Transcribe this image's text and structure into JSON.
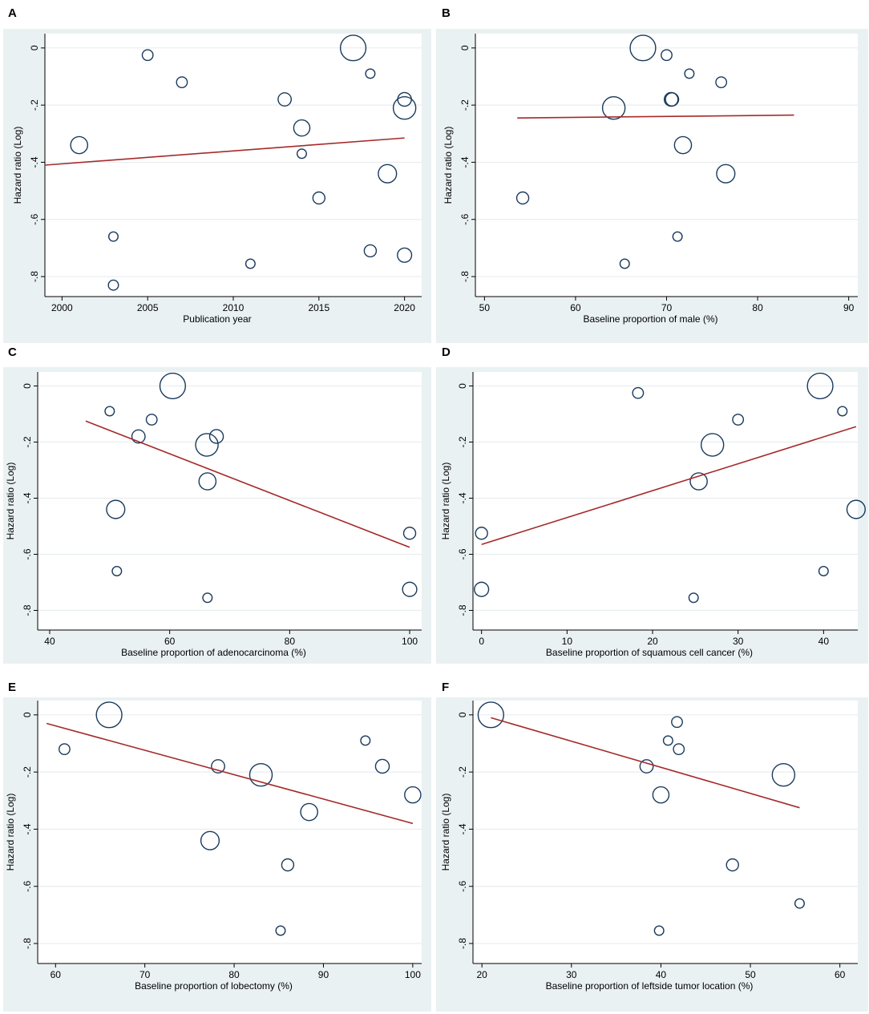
{
  "colors": {
    "panel_bg": "#eaf1f3",
    "plot_bg": "#ffffff",
    "gridline": "#e8eef0",
    "marker": "#1a3a5c",
    "fit_line": "#a52a2a",
    "axis": "#000000"
  },
  "chart_data": [
    {
      "panel": "A",
      "type": "scatter",
      "title": "",
      "xlabel": "Publication year",
      "ylabel": "Hazard ratio (Log)",
      "xlim": [
        1999,
        2021
      ],
      "ylim": [
        -0.87,
        0.05
      ],
      "xticks": [
        2000,
        2005,
        2010,
        2015,
        2020
      ],
      "xtick_labels": [
        "2000",
        "2005",
        "2010",
        "2015",
        "2020"
      ],
      "yticks": [
        0,
        -0.2,
        -0.4,
        -0.6,
        -0.8
      ],
      "ytick_labels": [
        "0",
        "-.2",
        "-.4",
        "-.6",
        "-.8"
      ],
      "points": [
        {
          "x": 2001,
          "y": -0.34,
          "weight": 2
        },
        {
          "x": 2003,
          "y": -0.66,
          "weight": 0.6
        },
        {
          "x": 2003,
          "y": -0.83,
          "weight": 0.7
        },
        {
          "x": 2005,
          "y": -0.025,
          "weight": 0.8
        },
        {
          "x": 2007,
          "y": -0.12,
          "weight": 0.8
        },
        {
          "x": 2011,
          "y": -0.755,
          "weight": 0.6
        },
        {
          "x": 2013,
          "y": -0.18,
          "weight": 1.2
        },
        {
          "x": 2014,
          "y": -0.28,
          "weight": 1.8
        },
        {
          "x": 2014,
          "y": -0.37,
          "weight": 0.6
        },
        {
          "x": 2015,
          "y": -0.525,
          "weight": 1.0
        },
        {
          "x": 2017,
          "y": 0.0,
          "weight": 4.5
        },
        {
          "x": 2018,
          "y": -0.09,
          "weight": 0.6
        },
        {
          "x": 2018,
          "y": -0.71,
          "weight": 1.0
        },
        {
          "x": 2019,
          "y": -0.44,
          "weight": 2.3
        },
        {
          "x": 2020,
          "y": -0.18,
          "weight": 1.3
        },
        {
          "x": 2020,
          "y": -0.21,
          "weight": 3.5
        },
        {
          "x": 2020,
          "y": -0.725,
          "weight": 1.4
        }
      ],
      "fit_line": {
        "x": [
          1999,
          2020
        ],
        "y": [
          -0.41,
          -0.315
        ]
      }
    },
    {
      "panel": "B",
      "type": "scatter",
      "title": "",
      "xlabel": "Baseline proportion of male (%)",
      "ylabel": "Hazard ratio (Log)",
      "xlim": [
        49,
        91
      ],
      "ylim": [
        -0.87,
        0.05
      ],
      "xticks": [
        50,
        60,
        70,
        80,
        90
      ],
      "xtick_labels": [
        "50",
        "60",
        "70",
        "80",
        "90"
      ],
      "yticks": [
        0,
        -0.2,
        -0.4,
        -0.6,
        -0.8
      ],
      "ytick_labels": [
        "0",
        "-.2",
        "-.4",
        "-.6",
        "-.8"
      ],
      "points": [
        {
          "x": 54.2,
          "y": -0.525,
          "weight": 1.0
        },
        {
          "x": 64.2,
          "y": -0.21,
          "weight": 3.5
        },
        {
          "x": 65.4,
          "y": -0.755,
          "weight": 0.6
        },
        {
          "x": 67.4,
          "y": 0.0,
          "weight": 4.5
        },
        {
          "x": 70.0,
          "y": -0.025,
          "weight": 0.8
        },
        {
          "x": 70.5,
          "y": -0.18,
          "weight": 1.3
        },
        {
          "x": 70.6,
          "y": -0.18,
          "weight": 1.2
        },
        {
          "x": 71.2,
          "y": -0.66,
          "weight": 0.6
        },
        {
          "x": 71.8,
          "y": -0.34,
          "weight": 2.0
        },
        {
          "x": 72.5,
          "y": -0.09,
          "weight": 0.6
        },
        {
          "x": 76.0,
          "y": -0.12,
          "weight": 0.8
        },
        {
          "x": 76.5,
          "y": -0.44,
          "weight": 2.3
        }
      ],
      "fit_line": {
        "x": [
          53.6,
          84.0
        ],
        "y": [
          -0.245,
          -0.235
        ]
      }
    },
    {
      "panel": "C",
      "type": "scatter",
      "title": "",
      "xlabel": "Baseline proportion of adenocarcinoma (%)",
      "ylabel": "Hazard ratio (Log)",
      "xlim": [
        38,
        102
      ],
      "ylim": [
        -0.87,
        0.05
      ],
      "xticks": [
        40,
        60,
        80,
        100
      ],
      "xtick_labels": [
        "40",
        "60",
        "80",
        "100"
      ],
      "yticks": [
        0,
        -0.2,
        -0.4,
        -0.6,
        -0.8
      ],
      "ytick_labels": [
        "0",
        "-.2",
        "-.4",
        "-.6",
        "-.8"
      ],
      "points": [
        {
          "x": 50.0,
          "y": -0.09,
          "weight": 0.6
        },
        {
          "x": 51.0,
          "y": -0.44,
          "weight": 2.3
        },
        {
          "x": 51.2,
          "y": -0.66,
          "weight": 0.6
        },
        {
          "x": 54.8,
          "y": -0.18,
          "weight": 1.2
        },
        {
          "x": 57.0,
          "y": -0.12,
          "weight": 0.8
        },
        {
          "x": 60.5,
          "y": 0.0,
          "weight": 4.5
        },
        {
          "x": 66.2,
          "y": -0.21,
          "weight": 3.5
        },
        {
          "x": 66.3,
          "y": -0.34,
          "weight": 2.0
        },
        {
          "x": 66.3,
          "y": -0.755,
          "weight": 0.6
        },
        {
          "x": 67.8,
          "y": -0.18,
          "weight": 1.3
        },
        {
          "x": 100.0,
          "y": -0.525,
          "weight": 1.0
        },
        {
          "x": 100.0,
          "y": -0.725,
          "weight": 1.4
        }
      ],
      "fit_line": {
        "x": [
          46.0,
          100.0
        ],
        "y": [
          -0.125,
          -0.575
        ]
      }
    },
    {
      "panel": "D",
      "type": "scatter",
      "title": "",
      "xlabel": "Baseline proportion of squamous cell cancer (%)",
      "ylabel": "Hazard ratio (Log)",
      "xlim": [
        -1,
        44
      ],
      "ylim": [
        -0.87,
        0.05
      ],
      "xticks": [
        0,
        10,
        20,
        30,
        40
      ],
      "xtick_labels": [
        "0",
        "10",
        "20",
        "30",
        "40"
      ],
      "yticks": [
        0,
        -0.2,
        -0.4,
        -0.6,
        -0.8
      ],
      "ytick_labels": [
        "0",
        "-.2",
        "-.4",
        "-.6",
        "-.8"
      ],
      "points": [
        {
          "x": 0.0,
          "y": -0.525,
          "weight": 1.0
        },
        {
          "x": 0.0,
          "y": -0.725,
          "weight": 1.4
        },
        {
          "x": 18.3,
          "y": -0.025,
          "weight": 0.8
        },
        {
          "x": 24.8,
          "y": -0.755,
          "weight": 0.6
        },
        {
          "x": 25.4,
          "y": -0.34,
          "weight": 2.0
        },
        {
          "x": 27.0,
          "y": -0.21,
          "weight": 3.5
        },
        {
          "x": 30.0,
          "y": -0.12,
          "weight": 0.8
        },
        {
          "x": 39.6,
          "y": 0.0,
          "weight": 4.5
        },
        {
          "x": 40.0,
          "y": -0.66,
          "weight": 0.6
        },
        {
          "x": 42.2,
          "y": -0.09,
          "weight": 0.6
        },
        {
          "x": 43.8,
          "y": -0.44,
          "weight": 2.3
        }
      ],
      "fit_line": {
        "x": [
          0.0,
          43.8
        ],
        "y": [
          -0.565,
          -0.145
        ]
      }
    },
    {
      "panel": "E",
      "type": "scatter",
      "title": "",
      "xlabel": "Baseline proportion of lobectomy (%)",
      "ylabel": "Hazard ratio (Log)",
      "xlim": [
        58,
        101
      ],
      "ylim": [
        -0.87,
        0.05
      ],
      "xticks": [
        60,
        70,
        80,
        90,
        100
      ],
      "xtick_labels": [
        "60",
        "70",
        "80",
        "90",
        "100"
      ],
      "yticks": [
        0,
        -0.2,
        -0.4,
        -0.6,
        -0.8
      ],
      "ytick_labels": [
        "0",
        "-.2",
        "-.4",
        "-.6",
        "-.8"
      ],
      "points": [
        {
          "x": 61.0,
          "y": -0.12,
          "weight": 0.8
        },
        {
          "x": 66.0,
          "y": 0.0,
          "weight": 4.5
        },
        {
          "x": 77.3,
          "y": -0.44,
          "weight": 2.3
        },
        {
          "x": 78.2,
          "y": -0.18,
          "weight": 1.2
        },
        {
          "x": 83.0,
          "y": -0.21,
          "weight": 3.5
        },
        {
          "x": 85.2,
          "y": -0.755,
          "weight": 0.6
        },
        {
          "x": 86.0,
          "y": -0.525,
          "weight": 1.0
        },
        {
          "x": 88.4,
          "y": -0.34,
          "weight": 2.0
        },
        {
          "x": 94.7,
          "y": -0.09,
          "weight": 0.6
        },
        {
          "x": 96.6,
          "y": -0.18,
          "weight": 1.3
        },
        {
          "x": 100.0,
          "y": -0.28,
          "weight": 1.8
        }
      ],
      "fit_line": {
        "x": [
          59.0,
          100.0
        ],
        "y": [
          -0.03,
          -0.38
        ]
      }
    },
    {
      "panel": "F",
      "type": "scatter",
      "title": "",
      "xlabel": "Baseline proportion of leftside tumor location (%)",
      "ylabel": "Hazard ratio (Log)",
      "xlim": [
        19,
        62
      ],
      "ylim": [
        -0.87,
        0.05
      ],
      "xticks": [
        20,
        30,
        40,
        50,
        60
      ],
      "xtick_labels": [
        "20",
        "30",
        "40",
        "50",
        "60"
      ],
      "yticks": [
        0,
        -0.2,
        -0.4,
        -0.6,
        -0.8
      ],
      "ytick_labels": [
        "0",
        "-.2",
        "-.4",
        "-.6",
        "-.8"
      ],
      "points": [
        {
          "x": 21.0,
          "y": 0.0,
          "weight": 4.5
        },
        {
          "x": 38.4,
          "y": -0.18,
          "weight": 1.2
        },
        {
          "x": 39.8,
          "y": -0.755,
          "weight": 0.6
        },
        {
          "x": 40.0,
          "y": -0.28,
          "weight": 1.8
        },
        {
          "x": 40.8,
          "y": -0.09,
          "weight": 0.6
        },
        {
          "x": 41.8,
          "y": -0.025,
          "weight": 0.8
        },
        {
          "x": 42.0,
          "y": -0.12,
          "weight": 0.8
        },
        {
          "x": 48.0,
          "y": -0.525,
          "weight": 1.0
        },
        {
          "x": 53.7,
          "y": -0.21,
          "weight": 3.5
        },
        {
          "x": 55.5,
          "y": -0.66,
          "weight": 0.6
        }
      ],
      "fit_line": {
        "x": [
          21.0,
          55.5
        ],
        "y": [
          -0.01,
          -0.325
        ]
      }
    }
  ]
}
